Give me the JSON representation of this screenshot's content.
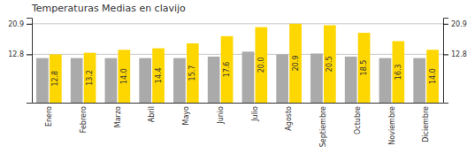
{
  "chart_data": {
    "type": "bar",
    "title": "Temperaturas Medias en clavijo",
    "categories": [
      "Enero",
      "Febrero",
      "Marzo",
      "Abril",
      "Mayo",
      "Junio",
      "Julio",
      "Agosto",
      "Septiembre",
      "Octubre",
      "Noviembre",
      "Diciembre"
    ],
    "series": [
      {
        "color": "#AAAAAA",
        "values": [
          11.8,
          11.8,
          11.8,
          11.8,
          11.8,
          12.2,
          13.5,
          12.8,
          13.0,
          12.2,
          11.8,
          11.8
        ]
      },
      {
        "color": "#FFD700",
        "values": [
          12.8,
          13.2,
          14.0,
          14.4,
          15.7,
          17.6,
          20.0,
          20.9,
          20.5,
          18.5,
          16.3,
          14.0
        ],
        "value_labels": [
          "12.8",
          "13.2",
          "14.0",
          "14.4",
          "15.7",
          "17.6",
          "20.0",
          "20.9",
          "20.5",
          "18.5",
          "16.3",
          "14.0"
        ],
        "data_labels": true
      }
    ],
    "ylim": [
      0,
      22.5
    ],
    "yticks": [
      20.9,
      12.8
    ],
    "grid": true
  }
}
